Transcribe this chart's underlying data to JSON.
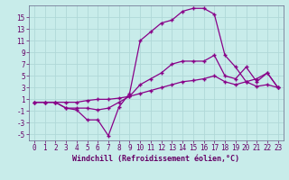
{
  "xlabel": "Windchill (Refroidissement éolien,°C)",
  "x": [
    0,
    1,
    2,
    3,
    4,
    5,
    6,
    7,
    8,
    9,
    10,
    11,
    12,
    13,
    14,
    15,
    16,
    17,
    18,
    19,
    20,
    21,
    22,
    23
  ],
  "line1": [
    0.5,
    0.5,
    0.5,
    -0.5,
    -0.8,
    -2.5,
    -2.5,
    -5.2,
    -0.3,
    2.0,
    11.0,
    12.5,
    14.0,
    14.5,
    16.0,
    16.5,
    16.5,
    15.5,
    8.5,
    6.5,
    4.0,
    4.5,
    5.5,
    3.0
  ],
  "line2": [
    0.5,
    0.5,
    0.5,
    -0.5,
    -0.5,
    -0.5,
    -0.8,
    -0.5,
    0.5,
    1.5,
    3.5,
    4.5,
    5.5,
    7.0,
    7.5,
    7.5,
    7.5,
    8.5,
    5.0,
    4.5,
    6.5,
    4.0,
    5.5,
    3.0
  ],
  "line3": [
    0.5,
    0.5,
    0.5,
    0.5,
    0.5,
    0.8,
    1.0,
    1.0,
    1.2,
    1.5,
    2.0,
    2.5,
    3.0,
    3.5,
    4.0,
    4.2,
    4.5,
    5.0,
    4.0,
    3.5,
    4.0,
    3.2,
    3.5,
    3.0
  ],
  "line_color": "#880088",
  "bg_color": "#c8ecea",
  "grid_color": "#b0d8d8",
  "ylim": [
    -6,
    17
  ],
  "yticks": [
    -5,
    -3,
    -1,
    1,
    3,
    5,
    7,
    9,
    11,
    13,
    15
  ],
  "xlim": [
    -0.5,
    23.5
  ],
  "xticks": [
    0,
    1,
    2,
    3,
    4,
    5,
    6,
    7,
    8,
    9,
    10,
    11,
    12,
    13,
    14,
    15,
    16,
    17,
    18,
    19,
    20,
    21,
    22,
    23
  ],
  "tick_fontsize": 5.5,
  "xlabel_fontsize": 6.0
}
